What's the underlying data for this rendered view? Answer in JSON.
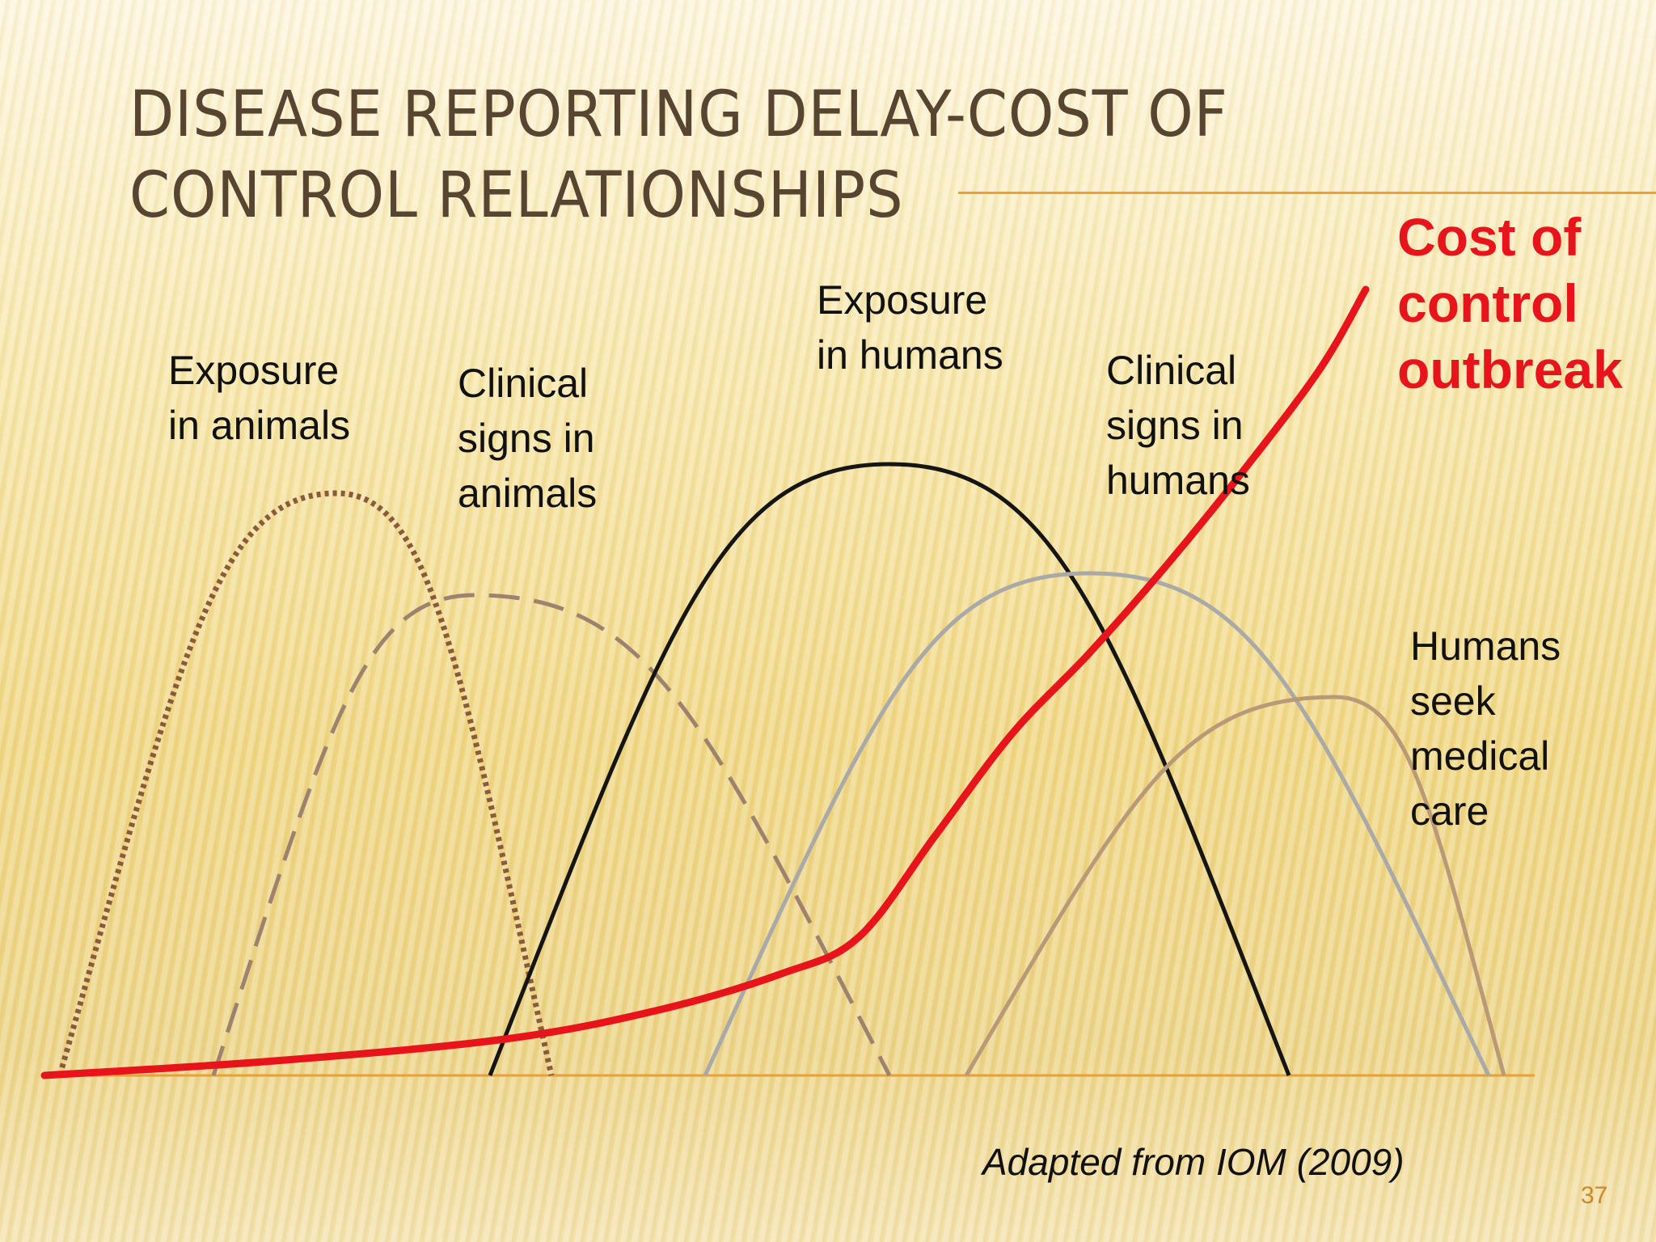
{
  "title": "DISEASE REPORTING DELAY-COST OF CONTROL RELATIONSHIPS",
  "chart_data": {
    "type": "line",
    "title": "DISEASE REPORTING DELAY-COST OF CONTROL RELATIONSHIPS",
    "xlabel": "",
    "ylabel": "",
    "xlim": [
      0,
      100
    ],
    "ylim": [
      0,
      100
    ],
    "series": [
      {
        "name": "Exposure in animals",
        "style": "dotted",
        "color": "#8b5a3c",
        "start": 1,
        "peak": 19,
        "end": 33,
        "height": 80
      },
      {
        "name": "Clinical signs in animals",
        "style": "dashed",
        "color": "#9e8270",
        "start": 11,
        "peak": 28,
        "end": 55,
        "height": 66
      },
      {
        "name": "Exposure in humans",
        "style": "solid",
        "color": "#151515",
        "start": 29,
        "peak": 55,
        "end": 81,
        "height": 84
      },
      {
        "name": "Clinical signs in humans",
        "style": "solid",
        "color": "#a9a9a9",
        "start": 43,
        "peak": 68,
        "end": 94,
        "height": 69
      },
      {
        "name": "Humans seek medical care",
        "style": "solid",
        "color": "#b89a78",
        "start": 60,
        "peak": 84,
        "end": 95,
        "height": 52
      },
      {
        "name": "Cost of control outbreak",
        "style": "solid",
        "color": "#e8141c",
        "x": [
          0,
          15,
          30,
          40,
          48,
          53,
          58,
          63,
          68,
          73,
          78,
          83,
          86
        ],
        "y": [
          0,
          2,
          5,
          9,
          14,
          19,
          33,
          47,
          58,
          70,
          83,
          97,
          108
        ]
      }
    ]
  },
  "labels": {
    "exposure_animals": "Exposure\nin animals",
    "clinical_animals": "Clinical\nsigns in\nanimals",
    "exposure_humans": "Exposure\nin humans",
    "clinical_humans": "Clinical\nsigns in\nhumans",
    "seek_care": "Humans\nseek\nmedical\ncare",
    "cost": "Cost of\ncontrol\noutbreak"
  },
  "credit": "Adapted from IOM (2009)",
  "page_number": "37"
}
